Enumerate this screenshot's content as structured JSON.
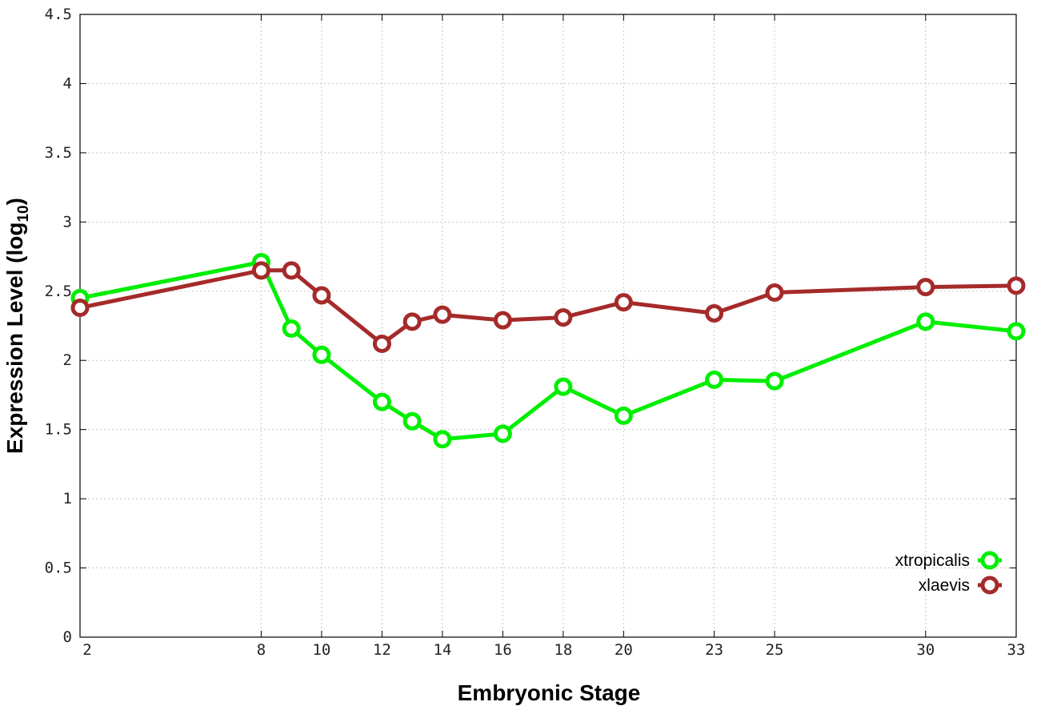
{
  "chart_data": {
    "type": "line",
    "xlabel": "Embryonic Stage",
    "ylabel": "Expression Level (log",
    "ylabel_sub": "10",
    "ylabel_close": ")",
    "ylim": [
      0,
      4.5
    ],
    "yticks": [
      "0",
      "0.5",
      "1",
      "1.5",
      "2",
      "2.5",
      "3",
      "3.5",
      "4",
      "4.5"
    ],
    "x": [
      2,
      8,
      9,
      10,
      12,
      13,
      14,
      16,
      18,
      20,
      23,
      25,
      30,
      33
    ],
    "xticks": [
      "2",
      "8",
      "10",
      "12",
      "14",
      "16",
      "18",
      "20",
      "23",
      "25",
      "30",
      "33"
    ],
    "grid": true,
    "legend_position": "bottom-right",
    "series": [
      {
        "name": "xtropicalis",
        "color": "#00ee00",
        "values": [
          2.45,
          2.71,
          2.23,
          2.04,
          1.7,
          1.56,
          1.43,
          1.47,
          1.81,
          1.6,
          1.86,
          1.85,
          2.28,
          2.21
        ]
      },
      {
        "name": "xlaevis",
        "color": "#a52a2a",
        "values": [
          2.38,
          2.65,
          2.65,
          2.47,
          2.12,
          2.28,
          2.33,
          2.29,
          2.31,
          2.42,
          2.34,
          2.49,
          2.53,
          2.54
        ]
      }
    ]
  }
}
